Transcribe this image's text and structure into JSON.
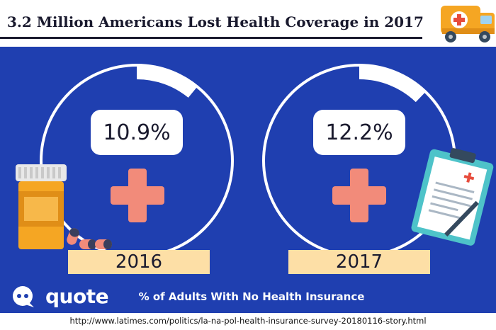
{
  "header": {
    "title": "3.2 Million Americans Lost Health Coverage in 2017"
  },
  "chart_data": {
    "type": "bar",
    "title": "3.2 Million Americans Lost Health Coverage in 2017",
    "xlabel": "% of Adults With No Health Insurance",
    "categories": [
      "2016",
      "2017"
    ],
    "values": [
      10.9,
      12.2
    ],
    "value_labels": [
      "10.9%",
      "12.2%"
    ],
    "unit": "%",
    "ylim": [
      0,
      100
    ]
  },
  "brand": {
    "logo_text": "quote"
  },
  "footer": {
    "source": "http://www.latimes.com/politics/la-na-pol-health-insurance-survey-20180116-story.html"
  },
  "colors": {
    "panel": "#1f3fb0",
    "ring": "#ffffff",
    "cross": "#f28b7a",
    "label_bg": "#fddfa6",
    "text": "#1a1a2e"
  },
  "icons": [
    "ambulance-icon",
    "pill-bottle-icon",
    "capsule-icon",
    "clipboard-icon",
    "medical-cross-icon"
  ]
}
